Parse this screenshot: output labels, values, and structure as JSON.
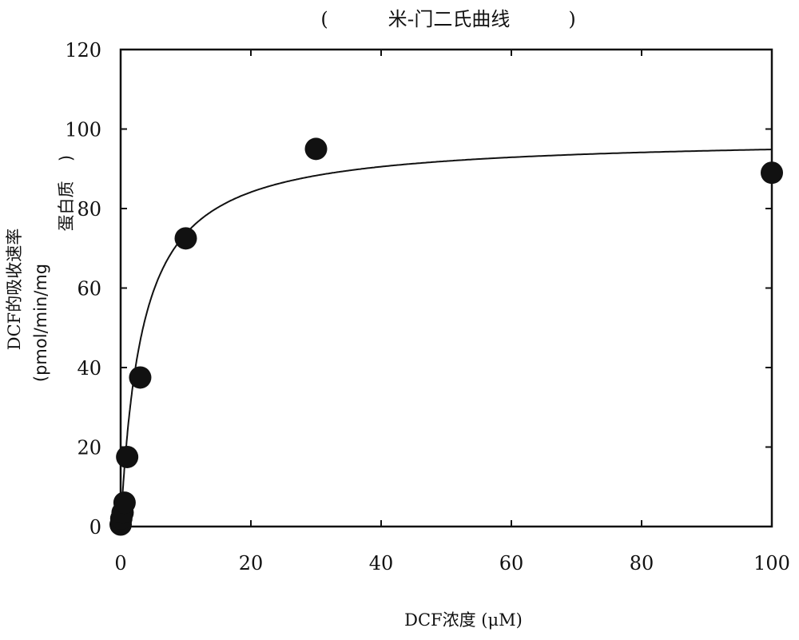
{
  "chart_data": {
    "type": "scatter",
    "title": "米-门二氏曲线",
    "title_open": "(",
    "title_close": ")",
    "xlabel": "DCF浓度 (μM)",
    "ylabel": {
      "line1": "DCF的吸收速率",
      "line2": "(pmol/min/mg",
      "line3": "蛋白质",
      "close": ")"
    },
    "xlim": [
      0,
      100
    ],
    "ylim": [
      0,
      120
    ],
    "x_ticks": [
      0,
      20,
      40,
      60,
      80,
      100
    ],
    "y_ticks": [
      0,
      20,
      40,
      60,
      80,
      100,
      120
    ],
    "grid": false,
    "series": [
      {
        "kind": "points",
        "x": [
          0,
          0.1,
          0.3,
          0.6,
          1,
          3,
          10,
          30,
          100
        ],
        "y": [
          0.5,
          2,
          3.5,
          6,
          17.5,
          37.5,
          72.5,
          95,
          89
        ],
        "color": "#111111"
      },
      {
        "kind": "fit-curve",
        "model": "Michaelis-Menten",
        "vmax": 98,
        "km": 3.3,
        "color": "#111111"
      }
    ]
  }
}
